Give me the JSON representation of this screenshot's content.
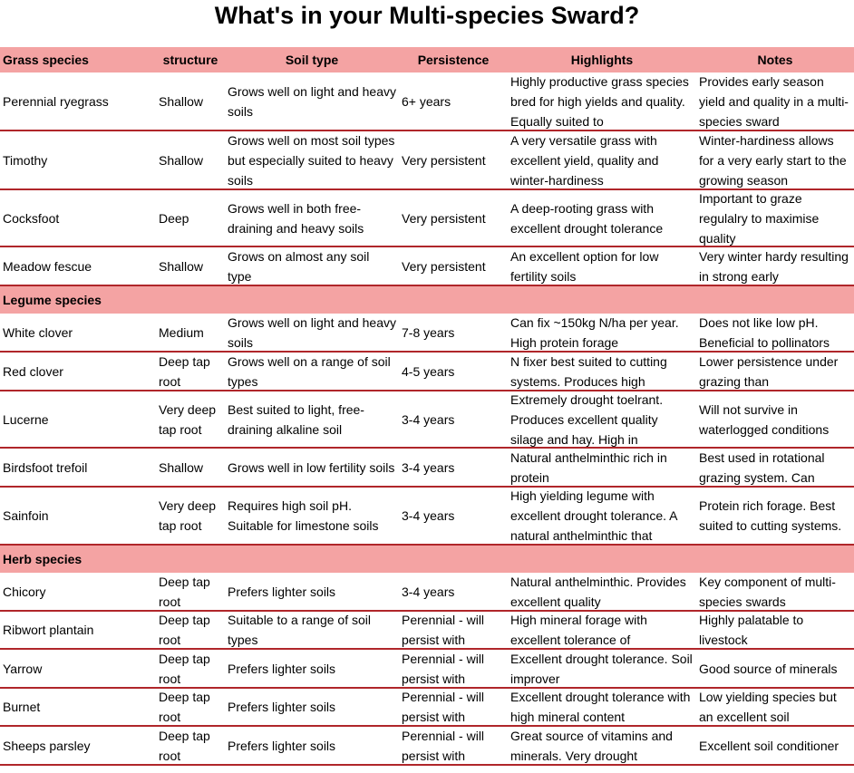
{
  "header": {
    "title": "What's in your Multi-species Sward?"
  },
  "table": {
    "columns": [
      "Grass species",
      "structure",
      "Soil type",
      "Persistence",
      "Highlights",
      "Notes"
    ],
    "groups": [
      {
        "rows": [
          [
            "Perennial ryegrass",
            "Shallow",
            "Grows well on light and heavy soils",
            "6+ years",
            "Highly productive grass species bred for high yields and quality. Equally suited to",
            "Provides early season yield and quality in a multi-species sward"
          ],
          [
            "Timothy",
            "Shallow",
            "Grows well on most soil types but especially suited to heavy soils",
            "Very persistent",
            "A very versatile grass with excellent yield, quality and winter-hardiness",
            "Winter-hardiness allows for a very early start to the growing season"
          ],
          [
            "Cocksfoot",
            "Deep",
            "Grows well in both free-draining and heavy soils",
            "Very persistent",
            "A deep-rooting grass with excellent drought tolerance",
            "Important to graze regulalry to maximise quality"
          ],
          [
            "Meadow fescue",
            "Shallow",
            "Grows on almost any soil type",
            "Very persistent",
            "An excellent option for low fertility soils",
            "Very winter hardy resulting in strong early"
          ]
        ]
      },
      {
        "title": "Legume species",
        "rows": [
          [
            "White clover",
            "Medium",
            "Grows well on light and heavy soils",
            "7-8 years",
            "Can fix ~150kg N/ha per year. High protein forage",
            "Does not like low pH. Beneficial to pollinators"
          ],
          [
            "Red clover",
            "Deep tap root",
            "Grows well on a range of soil types",
            "4-5 years",
            "N fixer best suited to cutting systems. Produces high",
            "Lower persistence under grazing than"
          ],
          [
            "Lucerne",
            "Very deep tap root",
            "Best suited to light, free-draining alkaline soil",
            "3-4 years",
            "Extremely drought toelrant. Produces excellent quality silage and hay. High in",
            "Will not survive in waterlogged conditions"
          ],
          [
            "Birdsfoot trefoil",
            "Shallow",
            "Grows well in low fertility soils",
            "3-4 years",
            "Natural anthelminthic rich in protein",
            "Best used in rotational grazing system. Can"
          ],
          [
            "Sainfoin",
            "Very deep tap root",
            "Requires high soil pH. Suitable for limestone soils",
            "3-4 years",
            "High yielding legume with excellent drought tolerance. A natural anthelminthic that",
            "Protein rich forage. Best suited to cutting systems."
          ]
        ]
      },
      {
        "title": "Herb species",
        "rows": [
          [
            "Chicory",
            "Deep tap root",
            "Prefers lighter soils",
            "3-4 years",
            "Natural anthelminthic. Provides excellent quality",
            "Key component of multi-species swards"
          ],
          [
            "Ribwort plantain",
            "Deep tap root",
            "Suitable to a range of soil types",
            "Perennial - will persist with",
            "High mineral forage with excellent tolerance of",
            "Highly palatable to livestock"
          ],
          [
            "Yarrow",
            "Deep tap root",
            "Prefers lighter soils",
            "Perennial - will persist with",
            "Excellent drought tolerance. Soil improver",
            "Good source of minerals"
          ],
          [
            "Burnet",
            "Deep tap root",
            "Prefers lighter soils",
            "Perennial - will persist with",
            "Excellent drought tolerance with high mineral content",
            "Low yielding species but an excellent soil"
          ],
          [
            "Sheeps parsley",
            "Deep tap root",
            "Prefers lighter soils",
            "Perennial - will persist with",
            "Great source of vitamins and minerals. Very drought",
            "Excellent soil conditioner"
          ]
        ]
      }
    ]
  }
}
